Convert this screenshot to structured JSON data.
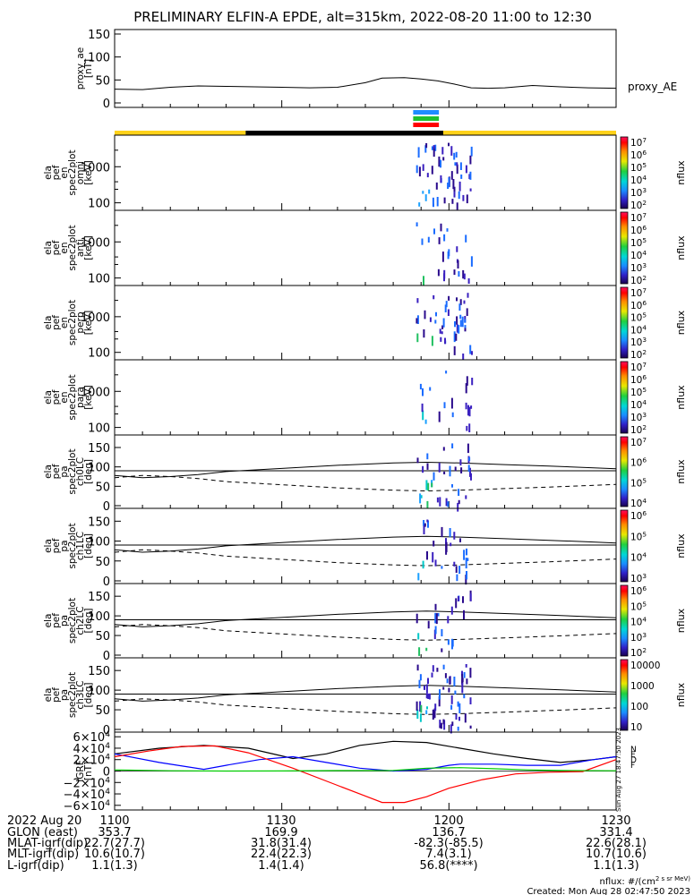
{
  "title": "PRELIMINARY ELFIN-A EPDE, alt=315km, 2022-08-20 11:00 to 12:30",
  "chart_data": [
    {
      "type": "line",
      "name": "proxy_ae",
      "ylabel": [
        "proxy_ae",
        "[nT]"
      ],
      "legend": "proxy_AE",
      "ylim": [
        0,
        150
      ],
      "yticks": [
        "150",
        "100",
        "50",
        "0"
      ],
      "x_minutes": [
        0,
        5,
        10,
        15,
        20,
        25,
        30,
        35,
        40,
        45,
        48,
        52,
        55,
        58,
        61,
        64,
        67,
        70,
        75,
        80,
        85,
        90
      ],
      "values": [
        30,
        29,
        34,
        37,
        36,
        35,
        34,
        33,
        34,
        44,
        54,
        55,
        52,
        48,
        41,
        33,
        32,
        33,
        38,
        35,
        33,
        32
      ],
      "color": "#000000"
    },
    {
      "type": "bars",
      "name": "status-bars",
      "bands": [
        {
          "color": "#1e8cff",
          "x_range": [
            11.893,
            11.97
          ]
        },
        {
          "color": "#1fbf2f",
          "x_range": [
            11.893,
            11.97
          ]
        },
        {
          "color": "#ff0000",
          "x_range": [
            11.893,
            11.97
          ]
        }
      ],
      "timeline": [
        {
          "color": "#ffd21a",
          "x_range": [
            11.0,
            11.392
          ]
        },
        {
          "color": "#000000",
          "x_range": [
            11.392,
            11.983
          ]
        },
        {
          "color": "#ffd21a",
          "x_range": [
            11.983,
            12.5
          ]
        }
      ]
    },
    {
      "type": "heatmap",
      "name": "omni-spectrum",
      "ylabel": [
        "ela",
        "pef",
        "en",
        "spec2plot",
        "omni",
        "[keV]"
      ],
      "yticks": [
        "1000",
        "100"
      ],
      "colorbar_label": "nflux",
      "colorbar_ticks": [
        "10^7",
        "10^6",
        "10^5",
        "10^4",
        "10^3",
        "10^2"
      ]
    },
    {
      "type": "heatmap",
      "name": "anti-spectrum",
      "ylabel": [
        "ela",
        "pef",
        "en",
        "spec2plot",
        "anti",
        "[keV]"
      ],
      "yticks": [
        "1000",
        "100"
      ],
      "colorbar_label": "nflux",
      "colorbar_ticks": [
        "10^7",
        "10^6",
        "10^5",
        "10^4",
        "10^3",
        "10^2"
      ]
    },
    {
      "type": "heatmap",
      "name": "perp-spectrum",
      "ylabel": [
        "ela",
        "pef",
        "en",
        "spec2plot",
        "perp",
        "[keV]"
      ],
      "yticks": [
        "1000",
        "100"
      ],
      "colorbar_label": "nflux",
      "colorbar_ticks": [
        "10^7",
        "10^6",
        "10^5",
        "10^4",
        "10^3",
        "10^2"
      ]
    },
    {
      "type": "heatmap",
      "name": "para-spectrum",
      "ylabel": [
        "ela",
        "pef",
        "en",
        "spec2plot",
        "para",
        "[keV]"
      ],
      "yticks": [
        "1000",
        "100"
      ],
      "colorbar_label": "nflux",
      "colorbar_ticks": [
        "10^7",
        "10^6",
        "10^5",
        "10^4",
        "10^3",
        "10^2"
      ]
    },
    {
      "type": "heatmap",
      "name": "ch0LC",
      "ylabel": [
        "ela",
        "pef",
        "pa",
        "spec2plot",
        "ch0LC",
        "[deg]"
      ],
      "ylim": [
        0,
        180
      ],
      "yticks": [
        "150",
        "100",
        "50",
        "0"
      ],
      "colorbar_label": "nflux",
      "colorbar_ticks": [
        "10^7",
        "10^6",
        "10^5",
        "10^4"
      ]
    },
    {
      "type": "heatmap",
      "name": "ch1LC",
      "ylabel": [
        "ela",
        "pef",
        "pa",
        "spec2plot",
        "ch1LC",
        "[deg]"
      ],
      "ylim": [
        0,
        180
      ],
      "yticks": [
        "150",
        "100",
        "50",
        "0"
      ],
      "colorbar_label": "nflux",
      "colorbar_ticks": [
        "10^6",
        "10^5",
        "10^4",
        "10^3"
      ]
    },
    {
      "type": "heatmap",
      "name": "ch2LC",
      "ylabel": [
        "ela",
        "pef",
        "pa",
        "spec2plot",
        "ch2LC",
        "[deg]"
      ],
      "ylim": [
        0,
        180
      ],
      "yticks": [
        "150",
        "100",
        "50",
        "0"
      ],
      "colorbar_label": "nflux",
      "colorbar_ticks": [
        "10^6",
        "10^5",
        "10^4",
        "10^3",
        "10^2"
      ]
    },
    {
      "type": "heatmap",
      "name": "ch3LC",
      "ylabel": [
        "ela",
        "pef",
        "pa",
        "spec2plot",
        "ch3LC",
        "[deg]"
      ],
      "ylim": [
        0,
        180
      ],
      "yticks": [
        "150",
        "100",
        "50",
        "0"
      ],
      "colorbar_label": "nflux",
      "colorbar_ticks": [
        "10000",
        "1000",
        "100",
        "10"
      ]
    },
    {
      "type": "line",
      "name": "igrf",
      "ylabel": [
        "IGRF",
        "[nT]"
      ],
      "ylim": [
        -65000,
        65000
      ],
      "yticks": [
        "6×10^4",
        "4×10^4",
        "2×10^4",
        "0",
        "−2×10^4",
        "−4×10^4",
        "−6×10^4"
      ],
      "legend": [
        "N",
        "E",
        "D",
        "F"
      ],
      "side_stamp": "Sun Aug 27 18:47:50 2023",
      "series": [
        {
          "name": "N",
          "color": "#000000",
          "x_minutes": [
            0,
            8,
            16,
            24,
            32,
            38,
            44,
            50,
            56,
            62,
            68,
            74,
            80,
            86,
            90
          ],
          "values": [
            30000,
            40000,
            45000,
            40000,
            22000,
            30000,
            45000,
            52000,
            50000,
            40000,
            30000,
            22000,
            15000,
            20000,
            25000
          ]
        },
        {
          "name": "E",
          "color": "#0000ff",
          "x_minutes": [
            0,
            8,
            16,
            20,
            26,
            32,
            38,
            44,
            50,
            56,
            60,
            62,
            68,
            74,
            80,
            86,
            90
          ],
          "values": [
            30000,
            15000,
            3000,
            10000,
            20000,
            25000,
            15000,
            5000,
            0,
            3000,
            10000,
            12000,
            12000,
            10000,
            10000,
            20000,
            25000
          ]
        },
        {
          "name": "D",
          "color": "#ff0000",
          "x_minutes": [
            0,
            6,
            12,
            18,
            24,
            32,
            40,
            48,
            52,
            56,
            60,
            66,
            72,
            78,
            84,
            90
          ],
          "values": [
            25000,
            35000,
            43000,
            44000,
            32000,
            5000,
            -25000,
            -55000,
            -55000,
            -45000,
            -30000,
            -15000,
            -5000,
            -2000,
            -1000,
            20000
          ]
        },
        {
          "name": "F",
          "color": "#00cc00",
          "x_minutes": [
            0,
            10,
            20,
            30,
            40,
            50,
            56,
            62,
            68,
            74,
            80,
            90
          ],
          "values": [
            2000,
            500,
            0,
            200,
            800,
            1000,
            5000,
            6000,
            4000,
            2000,
            1000,
            500
          ]
        }
      ]
    }
  ],
  "footer": {
    "x_tick_labels": [
      "1100",
      "1130",
      "1200",
      "1230"
    ],
    "rows": [
      {
        "label": "2022 Aug 20",
        "values": [
          "1100",
          "1130",
          "1200",
          "1230"
        ]
      },
      {
        "label": "GLON (east)",
        "values": [
          "353.7",
          "169.9",
          "136.7",
          "331.4"
        ]
      },
      {
        "label": "MLAT-igrf(dip)",
        "values": [
          "22.7(27.7)",
          "31.8(31.4)",
          "-82.3(-85.5)",
          "22.6(28.1)"
        ]
      },
      {
        "label": "MLT-igrf(dip)",
        "values": [
          "10.6(10.7)",
          "22.4(22.3)",
          "7.4(3.1)",
          "10.7(10.6)"
        ]
      },
      {
        "label": "L-igrf(dip)",
        "values": [
          "1.1(1.3)",
          "1.4(1.4)",
          "56.8(****)",
          "1.1(1.3)"
        ]
      }
    ],
    "units_note": "nflux: #/(cm^2 s sr MeV)",
    "created": "Created: Mon Aug 28 02:47:50 2023"
  }
}
